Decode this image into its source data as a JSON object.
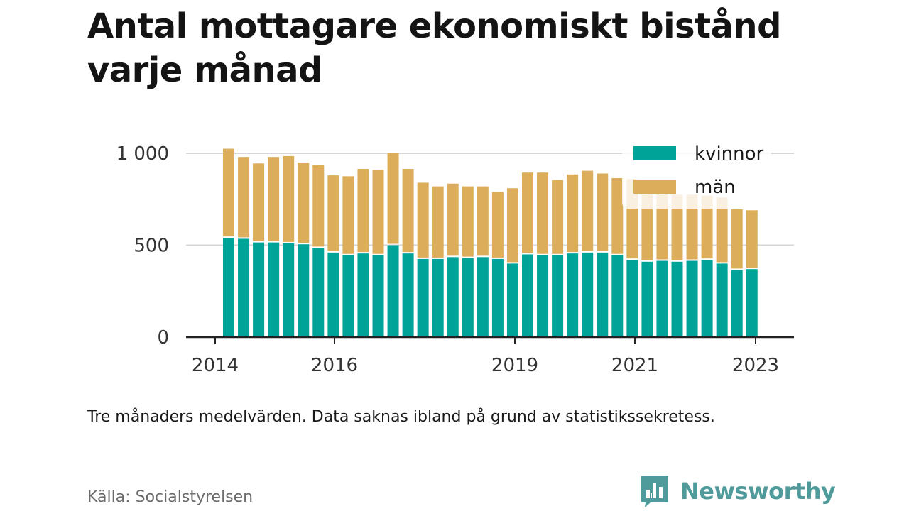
{
  "title": "Antal mottagare ekonomiskt bistånd varje månad",
  "note": "Tre månaders medelvärden. Data saknas ibland på grund av statistikssekretess.",
  "source": "Källa: Socialstyrelsen",
  "brand": "Newsworthy",
  "colors": {
    "kvinnor": "#00a398",
    "man": "#dcae5c",
    "grid": "#d6d6d6",
    "axis": "#222222",
    "brand": "#4f9b9b"
  },
  "chart_data": {
    "type": "bar",
    "stacked": true,
    "x_ticks": [
      "2014",
      "2016",
      "2019",
      "2021",
      "2023"
    ],
    "y_ticks": [
      "0",
      "500",
      "1 000"
    ],
    "ylim": [
      0,
      1000
    ],
    "grid": true,
    "legend_position": "top-right",
    "categories": [
      "2014Q2",
      "2014Q3",
      "2014Q4",
      "2015Q1",
      "2015Q2",
      "2015Q3",
      "2015Q4",
      "2016Q1",
      "2016Q2",
      "2016Q3",
      "2016Q4",
      "2017Q1",
      "2017Q2",
      "2017Q3",
      "2017Q4",
      "2018Q1",
      "2018Q2",
      "2018Q3",
      "2018Q4",
      "2019Q1",
      "2019Q2",
      "2019Q3",
      "2019Q4",
      "2020Q1",
      "2020Q2",
      "2020Q3",
      "2020Q4",
      "2021Q1",
      "2021Q2",
      "2021Q3",
      "2021Q4",
      "2022Q1",
      "2022Q2",
      "2022Q3",
      "2022Q4",
      "2023Q1"
    ],
    "series": [
      {
        "name": "kvinnor",
        "values": [
          540,
          535,
          515,
          515,
          510,
          505,
          485,
          460,
          445,
          455,
          445,
          500,
          455,
          425,
          425,
          435,
          430,
          435,
          425,
          400,
          450,
          445,
          445,
          455,
          460,
          460,
          445,
          420,
          410,
          415,
          410,
          415,
          420,
          400,
          365,
          370
        ]
      },
      {
        "name": "män",
        "values": [
          485,
          445,
          430,
          465,
          475,
          445,
          450,
          420,
          430,
          460,
          465,
          500,
          460,
          415,
          395,
          400,
          390,
          385,
          365,
          410,
          445,
          450,
          410,
          430,
          445,
          430,
          420,
          440,
          435,
          385,
          365,
          360,
          350,
          360,
          330,
          320
        ]
      }
    ]
  }
}
